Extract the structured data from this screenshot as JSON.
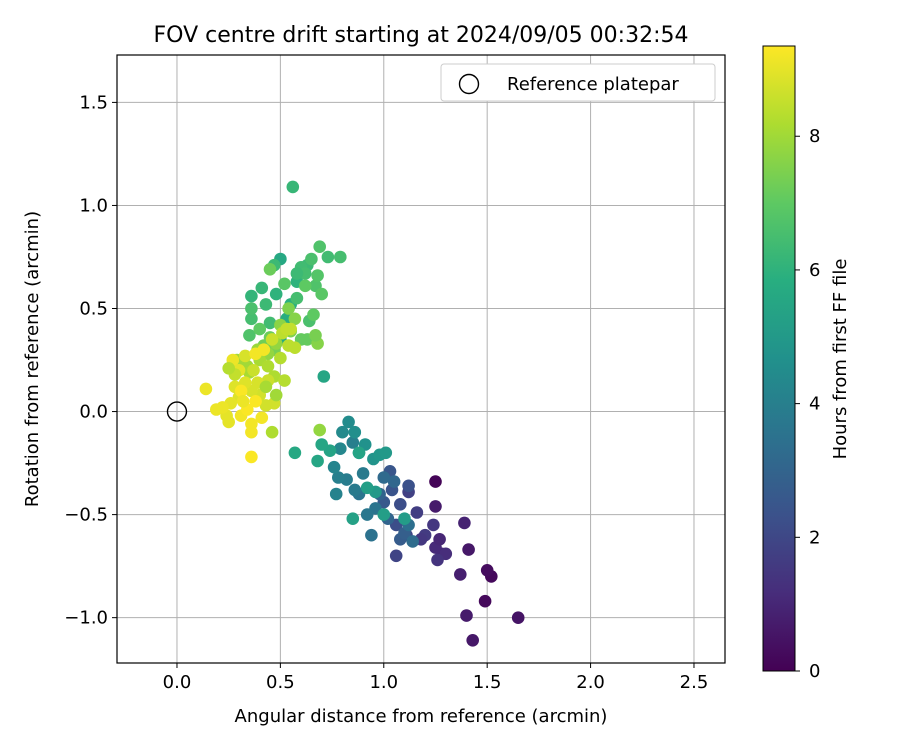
{
  "chart_data": {
    "type": "scatter",
    "title": "FOV centre drift starting at 2024/09/05 00:32:54",
    "xlabel": "Angular distance from reference (arcmin)",
    "ylabel": "Rotation from reference (arcmin)",
    "xlim": [
      -0.29,
      2.65
    ],
    "ylim": [
      -1.22,
      1.73
    ],
    "xticks": [
      0.0,
      0.5,
      1.0,
      1.5,
      2.0,
      2.5
    ],
    "xtick_labels": [
      "0.0",
      "0.5",
      "1.0",
      "1.5",
      "2.0",
      "2.5"
    ],
    "yticks": [
      -1.0,
      -0.5,
      0.0,
      0.5,
      1.0,
      1.5
    ],
    "ytick_labels": [
      "−1.0",
      "−0.5",
      "0.0",
      "0.5",
      "1.0",
      "1.5"
    ],
    "grid": true,
    "legend": {
      "position": "upper right",
      "entries": [
        "Reference platepar"
      ]
    },
    "reference_point": {
      "x": 0.0,
      "y": 0.0,
      "marker": "open-circle"
    },
    "colorbar": {
      "label": "Hours from first FF file",
      "colormap": "viridis",
      "range": [
        0,
        9.35
      ],
      "ticks": [
        0,
        2,
        4,
        6,
        8
      ],
      "tick_labels": [
        "0",
        "2",
        "4",
        "6",
        "8"
      ]
    },
    "series": [
      {
        "marker": "filled-circle",
        "color_by": "hours",
        "points": [
          [
            1.25,
            -0.34,
            0.1
          ],
          [
            1.52,
            -0.8,
            0.2
          ],
          [
            1.5,
            -0.77,
            0.3
          ],
          [
            1.49,
            -0.92,
            0.2
          ],
          [
            1.65,
            -1.0,
            0.5
          ],
          [
            1.43,
            -1.11,
            0.6
          ],
          [
            1.4,
            -0.99,
            0.7
          ],
          [
            1.41,
            -0.67,
            0.6
          ],
          [
            1.37,
            -0.79,
            0.8
          ],
          [
            1.39,
            -0.54,
            0.9
          ],
          [
            1.25,
            -0.46,
            0.7
          ],
          [
            1.28,
            -0.69,
            1.0
          ],
          [
            1.25,
            -0.66,
            1.1
          ],
          [
            1.3,
            -0.69,
            1.2
          ],
          [
            1.27,
            -0.62,
            1.0
          ],
          [
            1.26,
            -0.72,
            1.4
          ],
          [
            1.24,
            -0.55,
            1.5
          ],
          [
            1.2,
            -0.6,
            1.6
          ],
          [
            1.18,
            -0.62,
            1.5
          ],
          [
            1.16,
            -0.49,
            1.7
          ],
          [
            1.12,
            -0.39,
            1.8
          ],
          [
            1.06,
            -0.7,
            1.9
          ],
          [
            1.11,
            -0.6,
            2.0
          ],
          [
            1.08,
            -0.45,
            2.2
          ],
          [
            1.06,
            -0.55,
            2.2
          ],
          [
            1.12,
            -0.36,
            2.3
          ],
          [
            1.04,
            -0.38,
            2.4
          ],
          [
            1.03,
            -0.29,
            2.5
          ],
          [
            1.0,
            -0.44,
            2.6
          ],
          [
            1.08,
            -0.62,
            2.7
          ],
          [
            1.1,
            -0.59,
            2.8
          ],
          [
            1.02,
            -0.52,
            3.0
          ],
          [
            0.98,
            -0.4,
            3.0
          ],
          [
            1.05,
            -0.34,
            3.1
          ],
          [
            1.0,
            -0.32,
            3.2
          ],
          [
            1.14,
            -0.63,
            3.3
          ],
          [
            1.12,
            -0.55,
            3.4
          ],
          [
            0.94,
            -0.6,
            3.5
          ],
          [
            0.96,
            -0.47,
            3.6
          ],
          [
            0.88,
            -0.4,
            3.6
          ],
          [
            0.92,
            -0.5,
            3.7
          ],
          [
            0.9,
            -0.3,
            3.8
          ],
          [
            0.86,
            -0.38,
            3.8
          ],
          [
            0.82,
            -0.33,
            3.9
          ],
          [
            0.85,
            -0.15,
            4.0
          ],
          [
            0.78,
            -0.32,
            4.0
          ],
          [
            0.77,
            -0.4,
            4.1
          ],
          [
            0.76,
            -0.27,
            4.2
          ],
          [
            0.79,
            -0.18,
            4.3
          ],
          [
            0.8,
            -0.1,
            4.4
          ],
          [
            0.83,
            -0.05,
            4.5
          ],
          [
            0.86,
            -0.1,
            4.6
          ],
          [
            0.88,
            -0.2,
            4.7
          ],
          [
            0.91,
            -0.16,
            4.7
          ],
          [
            0.95,
            -0.23,
            4.8
          ],
          [
            0.98,
            -0.21,
            4.9
          ],
          [
            1.01,
            -0.2,
            5.0
          ],
          [
            0.96,
            -0.39,
            5.0
          ],
          [
            1.1,
            -0.52,
            5.1
          ],
          [
            1.0,
            -0.5,
            5.2
          ],
          [
            0.92,
            -0.37,
            5.2
          ],
          [
            0.85,
            -0.52,
            5.3
          ],
          [
            0.88,
            -0.2,
            5.4
          ],
          [
            0.74,
            -0.19,
            5.4
          ],
          [
            0.7,
            -0.16,
            5.5
          ],
          [
            0.68,
            -0.24,
            5.5
          ],
          [
            0.71,
            0.17,
            5.5
          ],
          [
            0.57,
            -0.2,
            5.6
          ],
          [
            0.5,
            0.35,
            5.7
          ],
          [
            0.53,
            0.45,
            5.8
          ],
          [
            0.55,
            0.52,
            5.9
          ],
          [
            0.58,
            0.63,
            6.0
          ],
          [
            0.56,
            1.09,
            6.2
          ],
          [
            0.63,
            0.71,
            6.3
          ],
          [
            0.6,
            0.7,
            6.4
          ],
          [
            0.58,
            0.55,
            6.5
          ],
          [
            0.62,
            0.67,
            6.5
          ],
          [
            0.64,
            0.44,
            6.6
          ],
          [
            0.65,
            0.74,
            6.6
          ],
          [
            0.67,
            0.61,
            6.7
          ],
          [
            0.69,
            0.8,
            6.7
          ],
          [
            0.73,
            0.75,
            6.4
          ],
          [
            0.79,
            0.75,
            6.5
          ],
          [
            0.68,
            0.66,
            6.8
          ],
          [
            0.7,
            0.57,
            6.9
          ],
          [
            0.62,
            0.61,
            7.0
          ],
          [
            0.66,
            0.47,
            7.0
          ],
          [
            0.6,
            0.35,
            7.1
          ],
          [
            0.63,
            0.35,
            7.1
          ],
          [
            0.5,
            0.74,
            5.6
          ],
          [
            0.47,
            0.71,
            6.3
          ],
          [
            0.45,
            0.69,
            7.2
          ],
          [
            0.52,
            0.62,
            6.9
          ],
          [
            0.48,
            0.57,
            6.0
          ],
          [
            0.41,
            0.6,
            6.2
          ],
          [
            0.43,
            0.52,
            6.3
          ],
          [
            0.45,
            0.43,
            6.4
          ],
          [
            0.36,
            0.56,
            6.1
          ],
          [
            0.36,
            0.45,
            6.5
          ],
          [
            0.35,
            0.37,
            6.7
          ],
          [
            0.4,
            0.4,
            7.0
          ],
          [
            0.45,
            0.36,
            7.2
          ],
          [
            0.42,
            0.32,
            7.3
          ],
          [
            0.47,
            0.3,
            7.4
          ],
          [
            0.55,
            0.39,
            7.5
          ],
          [
            0.54,
            0.5,
            7.5
          ],
          [
            0.57,
            0.45,
            7.6
          ],
          [
            0.5,
            0.42,
            7.7
          ],
          [
            0.48,
            0.33,
            7.8
          ],
          [
            0.44,
            0.28,
            7.8
          ],
          [
            0.39,
            0.3,
            7.9
          ],
          [
            0.34,
            0.22,
            8.0
          ],
          [
            0.29,
            0.25,
            8.0
          ],
          [
            0.35,
            0.19,
            8.1
          ],
          [
            0.4,
            0.25,
            8.1
          ],
          [
            0.44,
            0.22,
            8.2
          ],
          [
            0.47,
            0.17,
            8.2
          ],
          [
            0.52,
            0.15,
            8.3
          ],
          [
            0.5,
            0.26,
            8.3
          ],
          [
            0.54,
            0.32,
            8.4
          ],
          [
            0.57,
            0.31,
            8.4
          ],
          [
            0.51,
            0.38,
            8.4
          ],
          [
            0.53,
            0.4,
            8.5
          ],
          [
            0.55,
            0.4,
            8.5
          ],
          [
            0.46,
            0.35,
            8.6
          ],
          [
            0.44,
            0.15,
            8.6
          ],
          [
            0.4,
            0.08,
            8.7
          ],
          [
            0.47,
            0.04,
            8.7
          ],
          [
            0.43,
            0.03,
            8.7
          ],
          [
            0.46,
            -0.1,
            8.2
          ],
          [
            0.39,
            0.14,
            8.8
          ],
          [
            0.36,
            0.1,
            8.8
          ],
          [
            0.33,
            0.14,
            8.9
          ],
          [
            0.3,
            0.07,
            8.9
          ],
          [
            0.28,
            0.12,
            8.9
          ],
          [
            0.26,
            0.04,
            9.0
          ],
          [
            0.24,
            -0.02,
            9.0
          ],
          [
            0.25,
            -0.05,
            9.0
          ],
          [
            0.22,
            0.02,
            9.1
          ],
          [
            0.19,
            0.01,
            9.1
          ],
          [
            0.14,
            0.11,
            9.1
          ],
          [
            0.31,
            -0.02,
            9.2
          ],
          [
            0.36,
            -0.06,
            9.2
          ],
          [
            0.36,
            -0.1,
            9.2
          ],
          [
            0.41,
            -0.03,
            9.2
          ],
          [
            0.38,
            0.05,
            9.3
          ],
          [
            0.34,
            0.01,
            9.3
          ],
          [
            0.36,
            -0.22,
            9.3
          ],
          [
            0.27,
            0.25,
            9.1
          ],
          [
            0.3,
            0.2,
            9.0
          ],
          [
            0.33,
            0.27,
            8.8
          ],
          [
            0.38,
            0.28,
            9.2
          ],
          [
            0.42,
            0.3,
            9.2
          ],
          [
            0.31,
            0.1,
            9.3
          ],
          [
            0.37,
            0.2,
            8.6
          ],
          [
            0.28,
            0.18,
            8.5
          ],
          [
            0.48,
            0.08,
            8.0
          ],
          [
            0.43,
            0.12,
            8.1
          ],
          [
            0.25,
            0.21,
            8.3
          ],
          [
            0.32,
            0.05,
            9.1
          ],
          [
            0.69,
            -0.09,
            7.8
          ],
          [
            0.68,
            0.33,
            7.6
          ],
          [
            0.67,
            0.37,
            7.4
          ],
          [
            0.36,
            0.5,
            6.6
          ],
          [
            0.58,
            0.67,
            6.3
          ]
        ]
      }
    ]
  }
}
